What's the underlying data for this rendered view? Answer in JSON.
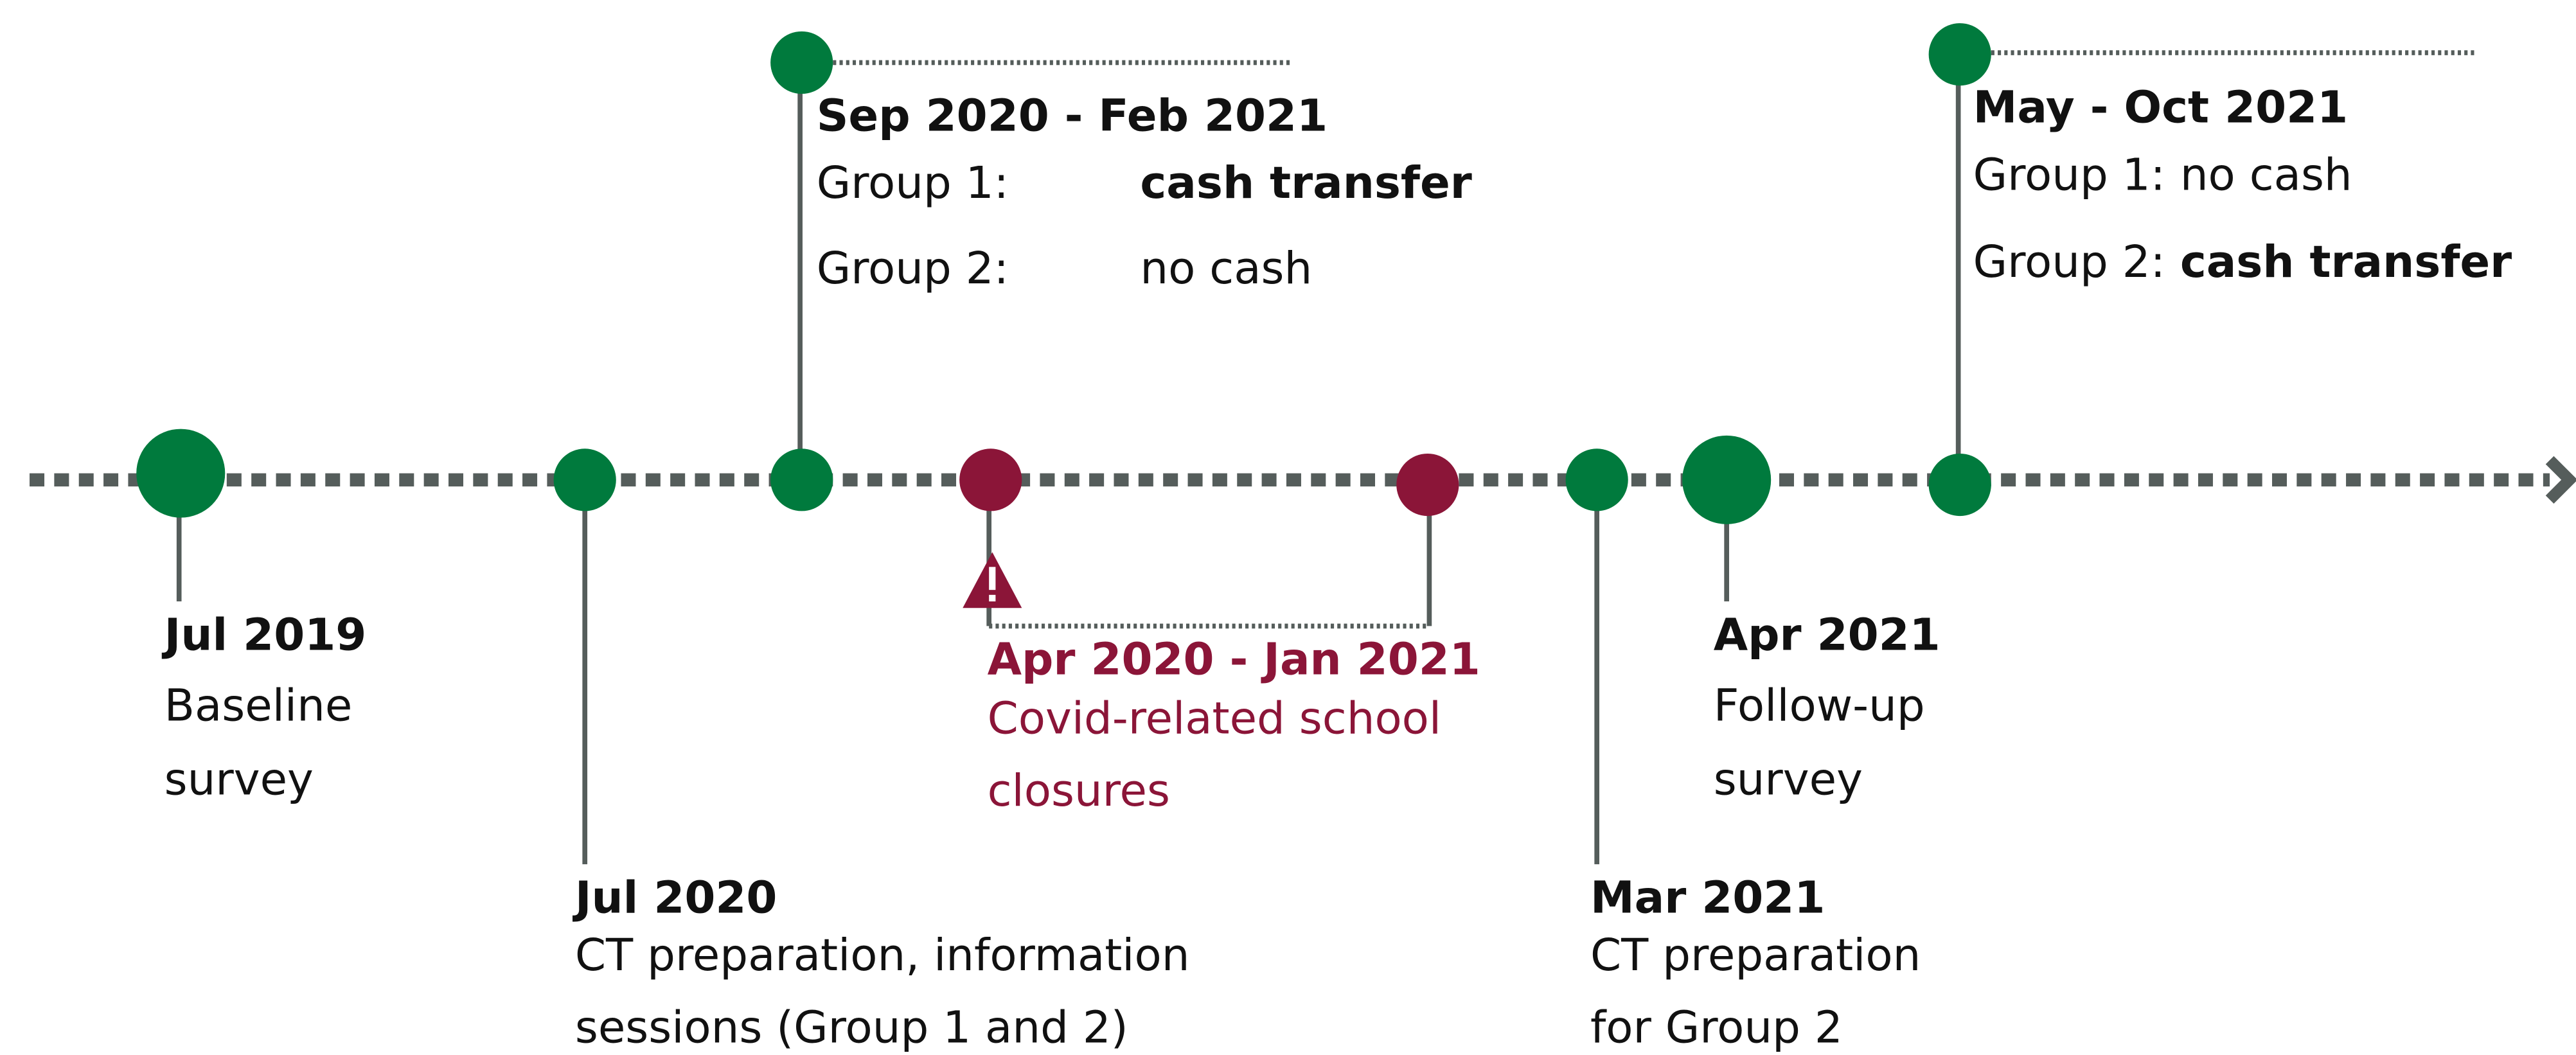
{
  "events": [
    {
      "date": "Jul 2019",
      "lines": [
        "Baseline",
        "survey"
      ]
    },
    {
      "date": "Jul 2020",
      "lines": [
        "CT preparation, information",
        "sessions (Group 1 and 2)"
      ]
    },
    {
      "date": "Sep 2020 - Feb 2021",
      "rows": [
        [
          "Group 1:",
          "cash transfer"
        ],
        [
          "Group 2:",
          "no cash"
        ]
      ]
    },
    {
      "date": "Apr 2020 - Jan 2021",
      "lines": [
        "Covid-related school",
        "closures"
      ]
    },
    {
      "date": "Mar 2021",
      "lines": [
        "CT preparation",
        "for Group 2"
      ]
    },
    {
      "date": "Apr 2021",
      "lines": [
        "Follow-up",
        "survey"
      ]
    },
    {
      "date": "May - Oct 2021",
      "rows": [
        [
          "Group 1:",
          "no cash"
        ],
        [
          "Group 2:",
          "cash transfer"
        ]
      ]
    }
  ]
}
